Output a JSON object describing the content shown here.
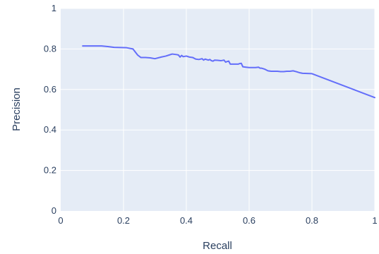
{
  "chart_data": {
    "type": "line",
    "title": "",
    "xlabel": "Recall",
    "ylabel": "Precision",
    "xlim": [
      0,
      1
    ],
    "ylim": [
      0,
      1
    ],
    "grid": true,
    "legend": "none",
    "colors": {
      "plot_bg": "#e5ecf6",
      "grid": "#ffffff",
      "line": "#636efa",
      "text": "#2a3f5f"
    },
    "x_ticks": [
      0,
      0.2,
      0.4,
      0.6,
      0.8,
      1
    ],
    "x_tick_labels": [
      "0",
      "0.2",
      "0.4",
      "0.6",
      "0.8",
      "1"
    ],
    "y_ticks": [
      0,
      0.2,
      0.4,
      0.6,
      0.8,
      1
    ],
    "y_tick_labels": [
      "0",
      "0.2",
      "0.4",
      "0.6",
      "0.8",
      "1"
    ],
    "series": [
      {
        "x": [
          0.07,
          0.13,
          0.15,
          0.17,
          0.21,
          0.23,
          0.245,
          0.255,
          0.27,
          0.285,
          0.3,
          0.32,
          0.335,
          0.345,
          0.355,
          0.37,
          0.375,
          0.38,
          0.385,
          0.39,
          0.4,
          0.41,
          0.42,
          0.43,
          0.44,
          0.45,
          0.455,
          0.46,
          0.47,
          0.475,
          0.48,
          0.485,
          0.49,
          0.5,
          0.51,
          0.52,
          0.525,
          0.53,
          0.535,
          0.54,
          0.55,
          0.56,
          0.565,
          0.57,
          0.575,
          0.58,
          0.59,
          0.6,
          0.61,
          0.62,
          0.63,
          0.635,
          0.64,
          0.65,
          0.66,
          0.67,
          0.68,
          0.69,
          0.7,
          0.71,
          0.72,
          0.73,
          0.74,
          0.75,
          0.76,
          0.77,
          0.8,
          1.0
        ],
        "y": [
          0.815,
          0.815,
          0.812,
          0.808,
          0.806,
          0.8,
          0.77,
          0.758,
          0.758,
          0.756,
          0.752,
          0.76,
          0.765,
          0.77,
          0.775,
          0.772,
          0.77,
          0.76,
          0.768,
          0.762,
          0.765,
          0.76,
          0.758,
          0.75,
          0.748,
          0.752,
          0.745,
          0.75,
          0.745,
          0.748,
          0.742,
          0.74,
          0.745,
          0.744,
          0.742,
          0.745,
          0.735,
          0.738,
          0.74,
          0.725,
          0.725,
          0.725,
          0.725,
          0.728,
          0.729,
          0.712,
          0.71,
          0.708,
          0.708,
          0.708,
          0.71,
          0.705,
          0.705,
          0.7,
          0.692,
          0.69,
          0.69,
          0.69,
          0.688,
          0.688,
          0.69,
          0.69,
          0.692,
          0.688,
          0.683,
          0.68,
          0.678,
          0.56
        ]
      }
    ]
  }
}
